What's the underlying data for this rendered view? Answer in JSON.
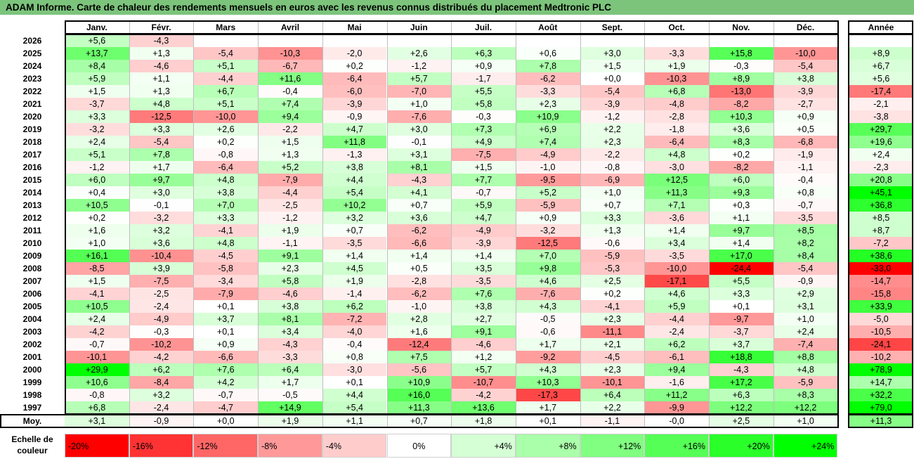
{
  "title": "ADAM Informe. Carte de chaleur des rendements mensuels en euros avec les revenus connus distribués du placement Medtronic PLC",
  "chart_data": {
    "type": "heatmap",
    "columns": [
      "Janv.",
      "Févr.",
      "Mars",
      "Avril",
      "Mai",
      "Juin",
      "Juil.",
      "Août",
      "Sept.",
      "Oct.",
      "Nov.",
      "Déc."
    ],
    "year_column": "Année",
    "rows": [
      {
        "year": "2026",
        "values": [
          "+5,6",
          "-4,3",
          "",
          "",
          "",
          "",
          "",
          "",
          "",
          "",
          "",
          ""
        ],
        "annual": ""
      },
      {
        "year": "2025",
        "values": [
          "+13,7",
          "+1,3",
          "-5,4",
          "-10,3",
          "-2,0",
          "+2,6",
          "+6,3",
          "+0,6",
          "+3,0",
          "-3,3",
          "+15,8",
          "-10,0"
        ],
        "annual": "+8,9"
      },
      {
        "year": "2024",
        "values": [
          "+8,4",
          "-4,6",
          "+5,1",
          "-6,7",
          "+0,2",
          "-1,2",
          "+0,9",
          "+7,8",
          "+1,5",
          "+1,9",
          "-0,3",
          "-5,4"
        ],
        "annual": "+6,7"
      },
      {
        "year": "2023",
        "values": [
          "+5,9",
          "+1,1",
          "-4,4",
          "+11,6",
          "-6,4",
          "+5,7",
          "-1,7",
          "-6,2",
          "+0,0",
          "-10,3",
          "+8,9",
          "+3,8"
        ],
        "annual": "+5,6"
      },
      {
        "year": "2022",
        "values": [
          "+1,5",
          "+1,3",
          "+6,7",
          "-0,4",
          "-6,0",
          "-7,0",
          "+5,5",
          "-3,3",
          "-5,4",
          "+6,8",
          "-13,0",
          "-3,9"
        ],
        "annual": "-17,4"
      },
      {
        "year": "2021",
        "values": [
          "-3,7",
          "+4,8",
          "+5,1",
          "+7,4",
          "-3,9",
          "+1,0",
          "+5,8",
          "+2,3",
          "-3,9",
          "-4,8",
          "-8,2",
          "-2,7"
        ],
        "annual": "-2,1"
      },
      {
        "year": "2020",
        "values": [
          "+3,3",
          "-12,5",
          "-10,0",
          "+9,4",
          "-0,9",
          "-7,6",
          "-0,3",
          "+10,9",
          "-1,2",
          "-2,8",
          "+10,3",
          "+0,9"
        ],
        "annual": "-3,8"
      },
      {
        "year": "2019",
        "values": [
          "-3,2",
          "+3,3",
          "+2,6",
          "-2,2",
          "+4,7",
          "+3,0",
          "+7,3",
          "+6,9",
          "+2,2",
          "-1,8",
          "+3,6",
          "+0,5"
        ],
        "annual": "+29,7"
      },
      {
        "year": "2018",
        "values": [
          "+2,4",
          "-5,4",
          "+0,2",
          "+1,5",
          "+11,8",
          "-0,1",
          "+4,9",
          "+7,4",
          "+2,3",
          "-6,4",
          "+8,3",
          "-6,8"
        ],
        "annual": "+19,6"
      },
      {
        "year": "2017",
        "values": [
          "+5,1",
          "+7,8",
          "-0,8",
          "+1,3",
          "-1,3",
          "+3,1",
          "-7,5",
          "-4,9",
          "-2,2",
          "+4,8",
          "+0,2",
          "-1,9"
        ],
        "annual": "+2,4"
      },
      {
        "year": "2016",
        "values": [
          "-1,2",
          "+1,7",
          "-6,4",
          "+5,2",
          "+3,8",
          "+8,1",
          "+1,5",
          "-1,0",
          "-0,8",
          "-3,0",
          "-8,2",
          "-1,1"
        ],
        "annual": "-2,3"
      },
      {
        "year": "2015",
        "values": [
          "+6,0",
          "+9,7",
          "+4,8",
          "-7,9",
          "+4,4",
          "-4,3",
          "+7,7",
          "-9,5",
          "-6,9",
          "+12,5",
          "+6,0",
          "-0,4"
        ],
        "annual": "+20,8"
      },
      {
        "year": "2014",
        "values": [
          "+0,4",
          "+3,0",
          "+3,8",
          "-4,4",
          "+5,4",
          "+4,1",
          "-0,7",
          "+5,2",
          "+1,0",
          "+11,3",
          "+9,3",
          "+0,8"
        ],
        "annual": "+45,1"
      },
      {
        "year": "2013",
        "values": [
          "+10,5",
          "-0,1",
          "+7,0",
          "-2,5",
          "+10,2",
          "+0,7",
          "+5,9",
          "-5,9",
          "+0,7",
          "+7,1",
          "+0,3",
          "-0,7"
        ],
        "annual": "+36,8"
      },
      {
        "year": "2012",
        "values": [
          "+0,2",
          "-3,2",
          "+3,3",
          "-1,2",
          "+3,2",
          "+3,6",
          "+4,7",
          "+0,9",
          "+3,3",
          "-3,6",
          "+1,1",
          "-3,5"
        ],
        "annual": "+8,5"
      },
      {
        "year": "2011",
        "values": [
          "+1,6",
          "+3,2",
          "-4,1",
          "+1,9",
          "+0,7",
          "-6,2",
          "-4,9",
          "-3,2",
          "+1,3",
          "+1,4",
          "+9,7",
          "+8,5"
        ],
        "annual": "+8,7"
      },
      {
        "year": "2010",
        "values": [
          "+1,0",
          "+3,6",
          "+4,8",
          "-1,1",
          "-3,5",
          "-6,6",
          "-3,9",
          "-12,5",
          "-0,6",
          "+3,4",
          "+1,4",
          "+8,2"
        ],
        "annual": "-7,2"
      },
      {
        "year": "2009",
        "values": [
          "+16,1",
          "-10,4",
          "-4,5",
          "+9,1",
          "+1,4",
          "+1,4",
          "+1,4",
          "+7,0",
          "-5,9",
          "-3,5",
          "+17,0",
          "+8,4"
        ],
        "annual": "+38,6"
      },
      {
        "year": "2008",
        "values": [
          "-8,5",
          "+3,9",
          "-5,8",
          "+2,3",
          "+4,5",
          "+0,5",
          "+3,5",
          "+9,8",
          "-5,3",
          "-10,0",
          "-24,4",
          "-5,4"
        ],
        "annual": "-33,0"
      },
      {
        "year": "2007",
        "values": [
          "+1,5",
          "-7,5",
          "-3,4",
          "+5,8",
          "+1,9",
          "-2,8",
          "-3,5",
          "+4,6",
          "+2,5",
          "-17,1",
          "+5,5",
          "-0,9"
        ],
        "annual": "-14,7"
      },
      {
        "year": "2006",
        "values": [
          "-4,1",
          "-2,5",
          "-7,9",
          "-4,6",
          "-1,4",
          "-6,2",
          "+7,6",
          "-7,6",
          "+0,2",
          "+4,6",
          "+3,3",
          "+2,9"
        ],
        "annual": "-15,8"
      },
      {
        "year": "2005",
        "values": [
          "+10,5",
          "-2,4",
          "+0,1",
          "+3,8",
          "+6,2",
          "-1,0",
          "+3,8",
          "+4,3",
          "-4,1",
          "+5,9",
          "+0,1",
          "+3,1"
        ],
        "annual": "+33,9"
      },
      {
        "year": "2004",
        "values": [
          "+2,4",
          "-4,9",
          "+3,7",
          "+8,1",
          "-7,2",
          "+2,8",
          "+2,7",
          "-0,5",
          "+2,3",
          "-4,4",
          "-9,7",
          "+1,0"
        ],
        "annual": "-5,0"
      },
      {
        "year": "2003",
        "values": [
          "-4,2",
          "-0,3",
          "+0,1",
          "+3,4",
          "-4,0",
          "+1,6",
          "+9,1",
          "-0,6",
          "-11,1",
          "-2,4",
          "-3,7",
          "+2,4"
        ],
        "annual": "-10,5"
      },
      {
        "year": "2002",
        "values": [
          "-0,7",
          "-10,2",
          "+0,9",
          "-4,3",
          "-0,4",
          "-12,4",
          "-4,6",
          "+1,7",
          "+2,1",
          "+6,2",
          "+3,7",
          "-7,4"
        ],
        "annual": "-24,1"
      },
      {
        "year": "2001",
        "values": [
          "-10,1",
          "-4,2",
          "-6,6",
          "-3,3",
          "+0,8",
          "+7,5",
          "+1,2",
          "-9,2",
          "-4,5",
          "-6,1",
          "+18,8",
          "+8,8"
        ],
        "annual": "-10,2"
      },
      {
        "year": "2000",
        "values": [
          "+29,9",
          "+6,2",
          "+7,6",
          "+6,4",
          "-3,0",
          "-5,6",
          "+5,7",
          "+4,3",
          "+2,3",
          "+9,4",
          "-4,3",
          "+4,8"
        ],
        "annual": "+78,9"
      },
      {
        "year": "1999",
        "values": [
          "+10,6",
          "-8,4",
          "+4,2",
          "+1,7",
          "+0,1",
          "+10,9",
          "-10,7",
          "+10,3",
          "-10,1",
          "-1,6",
          "+17,2",
          "-5,9"
        ],
        "annual": "+14,7"
      },
      {
        "year": "1998",
        "values": [
          "-0,8",
          "+3,2",
          "-0,7",
          "-0,5",
          "+4,4",
          "+16,0",
          "-4,2",
          "-17,3",
          "+6,4",
          "+11,2",
          "+6,3",
          "+8,3"
        ],
        "annual": "+32,2"
      },
      {
        "year": "1997",
        "values": [
          "+6,8",
          "-2,4",
          "-4,7",
          "+14,9",
          "+5,4",
          "+11,3",
          "+13,6",
          "+1,7",
          "+2,2",
          "-9,9",
          "+12,2",
          "+12,2"
        ],
        "annual": "+79,0"
      }
    ],
    "average": {
      "label": "Moy.",
      "values": [
        "+3,1",
        "-0,9",
        "+0,0",
        "+1,9",
        "+1,1",
        "+0,7",
        "+1,8",
        "+0,1",
        "-1,1",
        "-0,0",
        "+2,5",
        "+1,0"
      ],
      "annual": "+11,3"
    },
    "scale": {
      "label_line1": "Echelle de",
      "label_line2": "couleur",
      "steps": [
        "-20%",
        "-16%",
        "-12%",
        "-8%",
        "-4%",
        "0%",
        "+4%",
        "+8%",
        "+12%",
        "+16%",
        "+20%",
        "+24%"
      ],
      "values": [
        -20,
        -16,
        -12,
        -8,
        -4,
        0,
        4,
        8,
        12,
        16,
        20,
        24
      ]
    },
    "colors": {
      "negative": "#ff0000",
      "positive": "#00ff00",
      "neutral": "#ffffff",
      "title_band": "#7cc47c"
    }
  }
}
